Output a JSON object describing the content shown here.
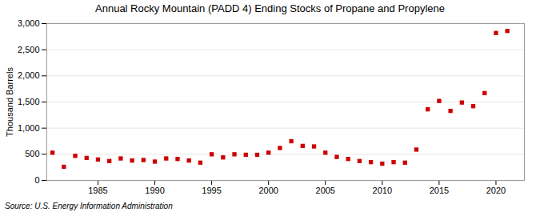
{
  "chart_data": {
    "type": "scatter",
    "title": "Annual Rocky Mountain (PADD 4) Ending Stocks of Propane and Propylene",
    "ylabel": "Thousand Barrels",
    "source": "Source: U.S. Energy Information Administration",
    "x": [
      1981,
      1982,
      1983,
      1984,
      1985,
      1986,
      1987,
      1988,
      1989,
      1990,
      1991,
      1992,
      1993,
      1994,
      1995,
      1996,
      1997,
      1998,
      1999,
      2000,
      2001,
      2002,
      2003,
      2004,
      2005,
      2006,
      2007,
      2008,
      2009,
      2010,
      2011,
      2012,
      2013,
      2014,
      2015,
      2016,
      2017,
      2018,
      2019,
      2020,
      2021
    ],
    "values": [
      530,
      260,
      470,
      430,
      400,
      370,
      420,
      380,
      390,
      360,
      420,
      410,
      380,
      340,
      500,
      440,
      500,
      490,
      490,
      530,
      620,
      750,
      660,
      650,
      530,
      450,
      410,
      370,
      350,
      320,
      350,
      340,
      590,
      1360,
      1520,
      1330,
      1490,
      1420,
      1670,
      2820,
      2860
    ],
    "color": "#cc0000",
    "marker": "square",
    "xlim": [
      1980.5,
      2022.5
    ],
    "xticks": [
      1985,
      1990,
      1995,
      2000,
      2005,
      2010,
      2015,
      2020
    ],
    "ylim": [
      0,
      3000
    ],
    "yticks": [
      0,
      500,
      {
        "value": 1000,
        "label": "1,000"
      },
      {
        "value": 1500,
        "label": "1,500"
      },
      {
        "value": 2000,
        "label": "2,000"
      },
      {
        "value": 2500,
        "label": "2,500"
      },
      {
        "value": 3000,
        "label": "3,000"
      }
    ],
    "grid": true
  }
}
